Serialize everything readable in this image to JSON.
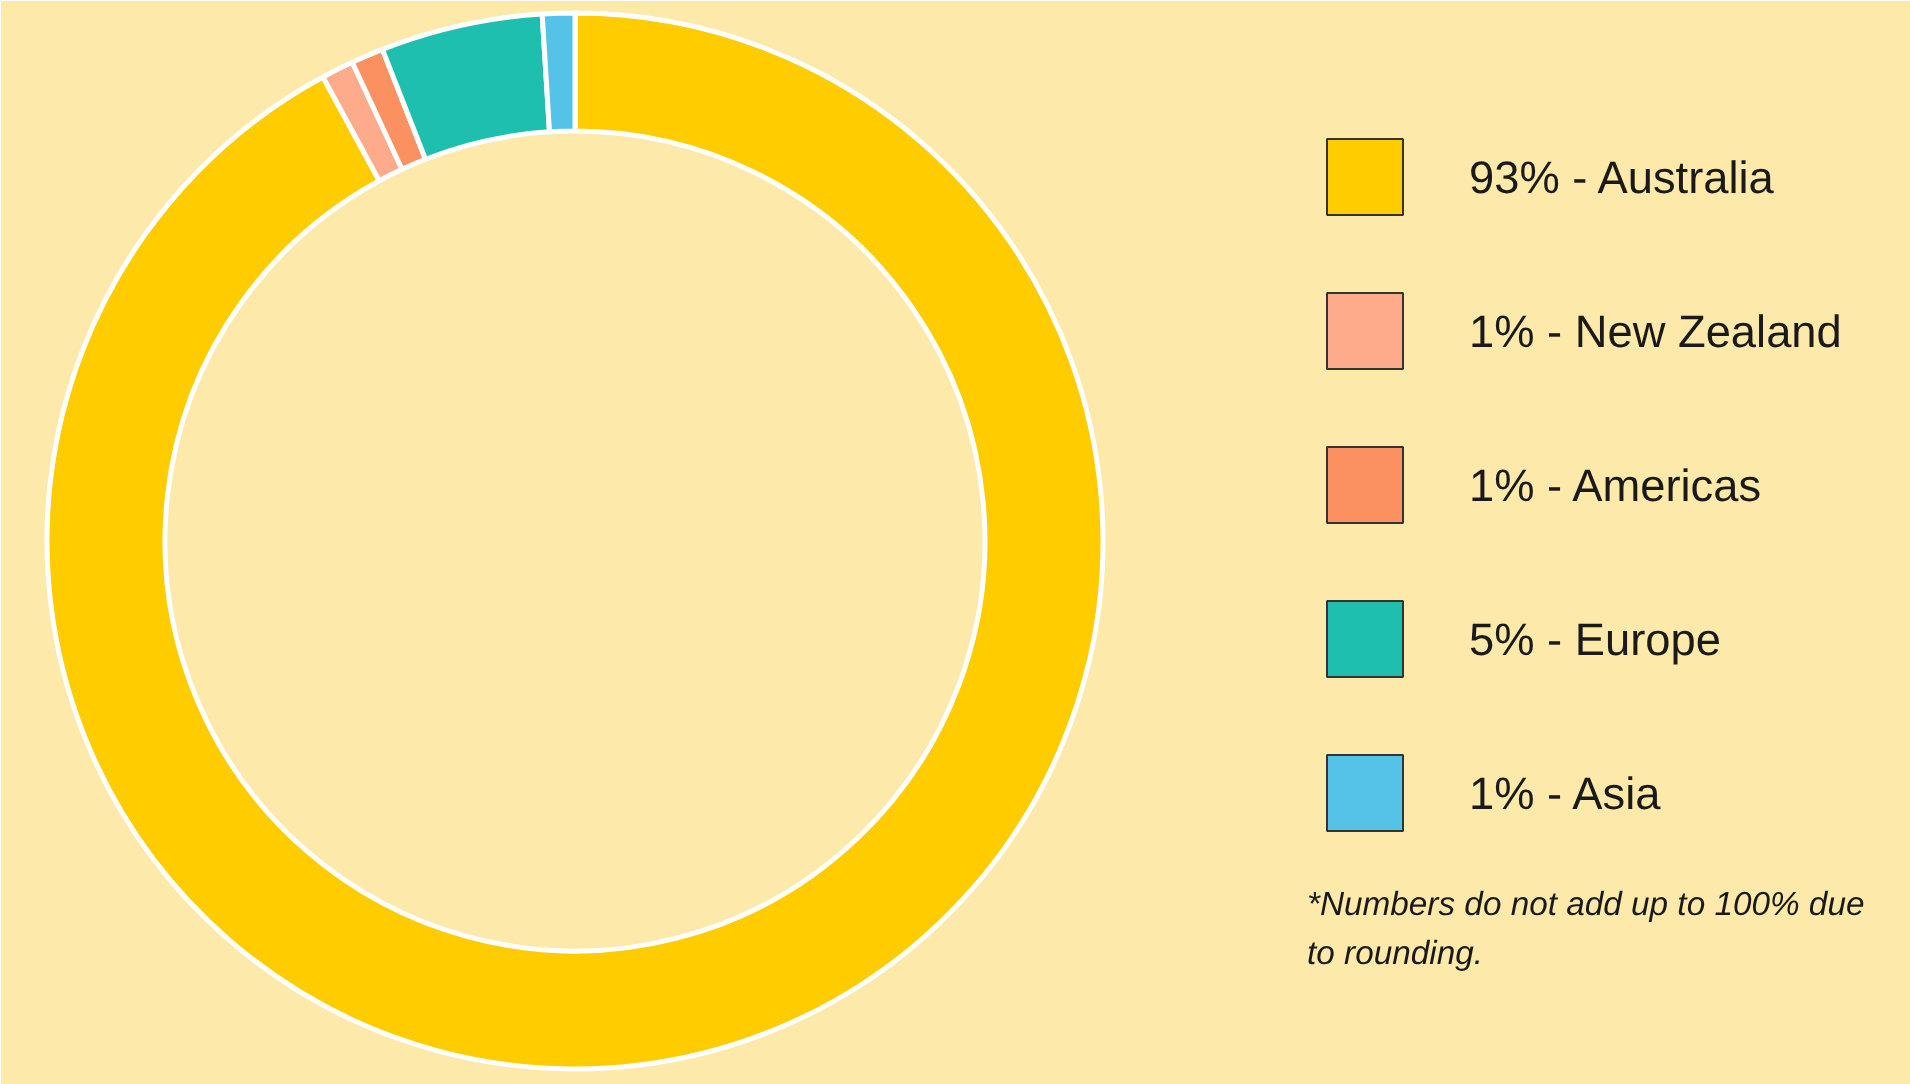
{
  "chart_data": {
    "type": "donut",
    "categories": [
      "93% - Australia",
      "1% - New Zealand",
      "1% - Americas",
      "5% - Europe",
      "1% - Asia"
    ],
    "values": [
      93,
      1,
      1,
      5,
      1
    ],
    "colors": [
      "#ffcc00",
      "#fdab8a",
      "#fb9160",
      "#1fbfb0",
      "#55c2e8"
    ],
    "legend": "right",
    "annotations": [
      "*Numbers do not add up to 100% due to rounding."
    ]
  }
}
